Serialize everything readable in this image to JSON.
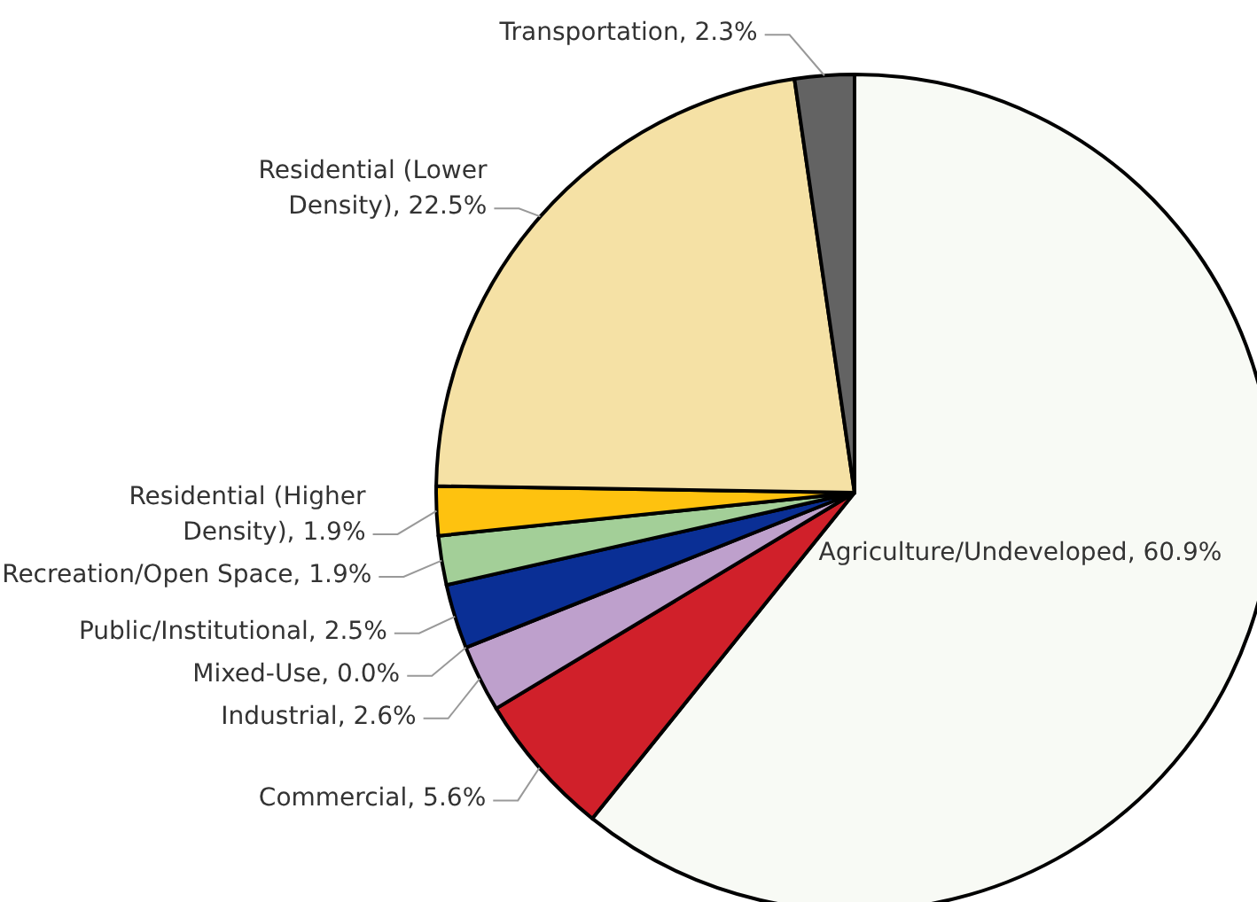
{
  "chart_data": {
    "type": "pie",
    "categories": [
      "Agriculture/Undeveloped",
      "Commercial",
      "Industrial",
      "Mixed-Use",
      "Public/Institutional",
      "Recreation/Open Space",
      "Residential (Higher Density)",
      "Residential (Lower Density)",
      "Transportation"
    ],
    "values": [
      60.9,
      5.6,
      2.6,
      0.0,
      2.5,
      1.9,
      1.9,
      22.5,
      2.3
    ],
    "value_labels": [
      "60.9%",
      "5.6%",
      "2.6%",
      "0.0%",
      "2.5%",
      "1.9%",
      "1.9%",
      "22.5%",
      "2.3%"
    ],
    "colors": [
      "#f8faf5",
      "#d0202a",
      "#bea0cc",
      "#e8a0a0",
      "#0a2f95",
      "#a3cf98",
      "#fec20f",
      "#f5e1a5",
      "#636363"
    ]
  }
}
